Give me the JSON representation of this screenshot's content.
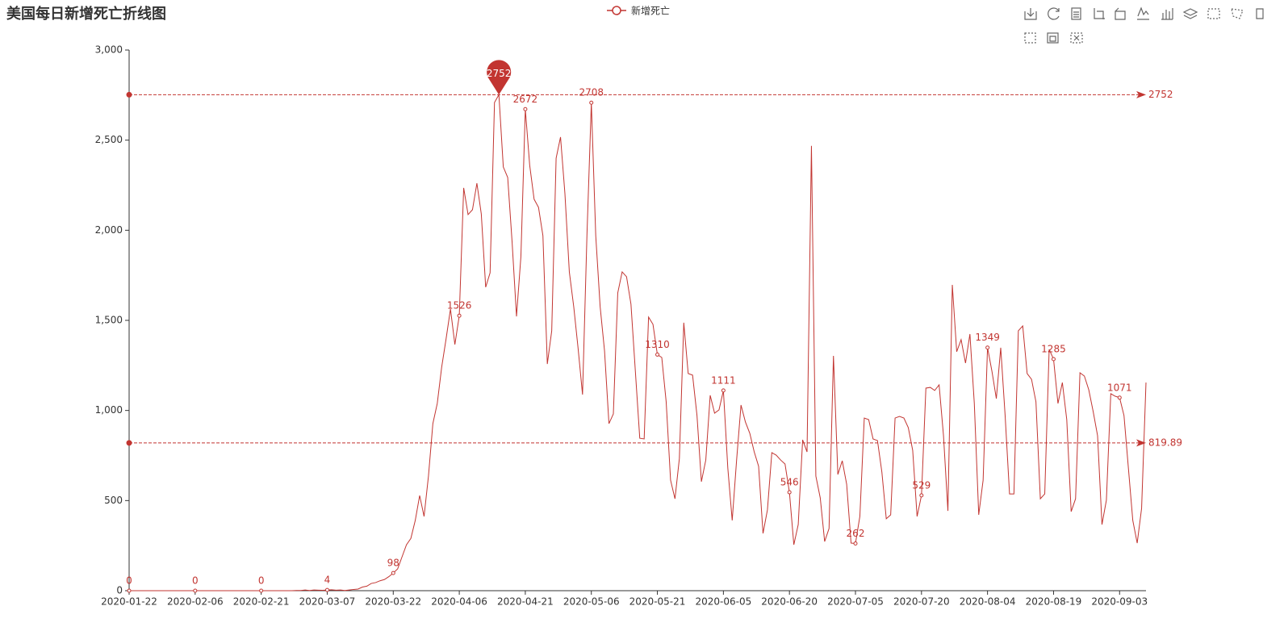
{
  "chart_data": {
    "type": "line",
    "title": "美国每日新增死亡折线图",
    "categories": [
      "2020-01-22",
      null,
      null,
      null,
      null,
      null,
      null,
      null,
      null,
      null,
      null,
      null,
      null,
      null,
      null,
      "2020-02-06",
      null,
      null,
      null,
      null,
      null,
      null,
      null,
      null,
      null,
      null,
      null,
      null,
      null,
      null,
      "2020-02-21",
      null,
      null,
      null,
      null,
      null,
      null,
      null,
      null,
      null,
      null,
      null,
      null,
      null,
      null,
      "2020-03-07",
      null,
      null,
      null,
      null,
      null,
      null,
      null,
      null,
      null,
      null,
      null,
      null,
      null,
      null,
      "2020-03-22",
      null,
      null,
      null,
      null,
      null,
      null,
      null,
      null,
      null,
      null,
      null,
      null,
      null,
      null,
      "2020-04-06",
      null,
      null,
      null,
      null,
      null,
      null,
      null,
      null,
      null,
      null,
      null,
      null,
      null,
      null,
      "2020-04-21",
      null,
      null,
      null,
      null,
      null,
      null,
      null,
      null,
      null,
      null,
      null,
      null,
      null,
      null,
      "2020-05-06",
      null,
      null,
      null,
      null,
      null,
      null,
      null,
      null,
      null,
      null,
      null,
      null,
      null,
      null,
      "2020-05-21",
      null,
      null,
      null,
      null,
      null,
      null,
      null,
      null,
      null,
      null,
      null,
      null,
      null,
      null,
      "2020-06-05",
      null,
      null,
      null,
      null,
      null,
      null,
      null,
      null,
      null,
      null,
      null,
      null,
      null,
      null,
      "2020-06-20",
      null,
      null,
      null,
      null,
      null,
      null,
      null,
      null,
      null,
      null,
      null,
      null,
      null,
      null,
      "2020-07-05",
      null,
      null,
      null,
      null,
      null,
      null,
      null,
      null,
      null,
      null,
      null,
      null,
      null,
      null,
      "2020-07-20",
      null,
      null,
      null,
      null,
      null,
      null,
      null,
      null,
      null,
      null,
      null,
      null,
      null,
      null,
      "2020-08-04",
      null,
      null,
      null,
      null,
      null,
      null,
      null,
      null,
      null,
      null,
      null,
      null,
      null,
      null,
      "2020-08-19",
      null,
      null,
      null,
      null,
      null,
      null,
      null,
      null,
      null,
      null,
      null,
      null,
      null,
      null,
      "2020-09-03",
      null,
      null,
      null,
      null,
      null,
      null
    ],
    "series": [
      {
        "name": "新增死亡",
        "color": "#c23531",
        "values": [
          0,
          0,
          0,
          0,
          0,
          0,
          0,
          0,
          0,
          0,
          0,
          0,
          0,
          0,
          0,
          0,
          0,
          0,
          0,
          0,
          0,
          0,
          0,
          0,
          0,
          0,
          0,
          0,
          0,
          0,
          0,
          0,
          0,
          0,
          0,
          0,
          0,
          0,
          1,
          1,
          4,
          1,
          4,
          3,
          2,
          4,
          5,
          3,
          4,
          1,
          4,
          7,
          9,
          20,
          25,
          40,
          45,
          55,
          62,
          78,
          98,
          121,
          188,
          255,
          290,
          390,
          528,
          412,
          636,
          927,
          1039,
          1240,
          1397,
          1563,
          1366,
          1526,
          2235,
          2087,
          2114,
          2261,
          2091,
          1684,
          1764,
          2709,
          2752,
          2351,
          2293,
          1934,
          1522,
          1854,
          2672,
          2360,
          2172,
          2127,
          1970,
          1258,
          1442,
          2400,
          2517,
          2203,
          1769,
          1576,
          1343,
          1088,
          1970,
          2708,
          1970,
          1576,
          1330,
          927,
          981,
          1652,
          1769,
          1742,
          1590,
          1218,
          846,
          842,
          1518,
          1478,
          1310,
          1294,
          1048,
          613,
          510,
          734,
          1487,
          1205,
          1196,
          972,
          605,
          725,
          1084,
          985,
          1003,
          1111,
          681,
          390,
          725,
          1030,
          936,
          873,
          770,
          690,
          318,
          448,
          766,
          752,
          725,
          703,
          546,
          255,
          367,
          837,
          770,
          2468,
          636,
          515,
          273,
          345,
          1303,
          645,
          721,
          591,
          264,
          262,
          412,
          958,
          949,
          842,
          833,
          658,
          399,
          421,
          958,
          967,
          958,
          905,
          779,
          412,
          529,
          1124,
          1128,
          1111,
          1142,
          860,
          443,
          1697,
          1326,
          1393,
          1263,
          1424,
          1039,
          421,
          613,
          1349,
          1218,
          1066,
          1348,
          972,
          537,
          537,
          1442,
          1469,
          1205,
          1173,
          1048,
          510,
          537,
          1339,
          1285,
          1039,
          1155,
          949,
          439,
          510,
          1209,
          1191,
          1115,
          994,
          860,
          367,
          502,
          1093,
          1079,
          1071,
          972,
          681,
          390,
          264,
          457,
          1155
        ]
      }
    ],
    "mark_point": 2752,
    "mark_lines": [
      2752,
      819.89
    ],
    "ylim": [
      0,
      3000
    ],
    "yticks": [
      0,
      500,
      {
        "value": 1000,
        "label": "1,000"
      },
      {
        "value": 1500,
        "label": "1,500"
      },
      {
        "value": 2000,
        "label": "2,000"
      },
      {
        "value": 2500,
        "label": "2,500"
      },
      {
        "value": 3000,
        "label": "3,000"
      }
    ]
  }
}
